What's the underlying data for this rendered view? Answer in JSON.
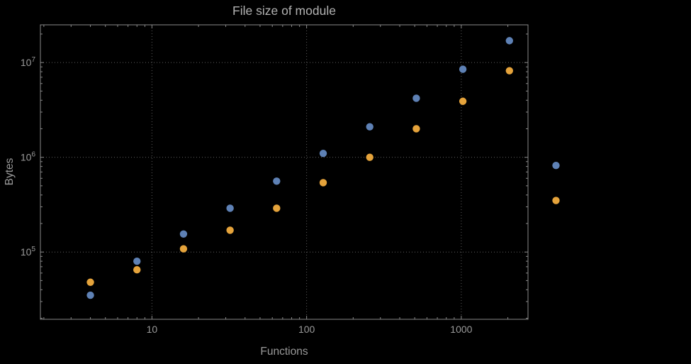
{
  "chart": {
    "title": "File size of module",
    "xlabel": "Functions",
    "ylabel": "Bytes"
  },
  "chart_data": {
    "type": "scatter",
    "title": "File size of module",
    "xlabel": "Functions",
    "ylabel": "Bytes",
    "x_scale": "log",
    "y_scale": "log",
    "grid": true,
    "legend": "none",
    "x": [
      4,
      8,
      16,
      32,
      64,
      128,
      256,
      512,
      1024,
      2048,
      4096
    ],
    "series": [
      {
        "name": "series-1-blue",
        "color": "#5e81b5",
        "values": [
          35000,
          80000,
          155000,
          290000,
          560000,
          1100000,
          2100000,
          4200000,
          8500000,
          17000000,
          820000
        ]
      },
      {
        "name": "series-2-orange",
        "color": "#e5a33b",
        "values": [
          48000,
          65000,
          108000,
          170000,
          290000,
          540000,
          1000000,
          2000000,
          3900000,
          8200000,
          350000
        ]
      }
    ],
    "xticks": {
      "values": [
        10,
        100,
        1000
      ],
      "labels": [
        "10",
        "100",
        "1000"
      ]
    },
    "yticks": {
      "values": [
        100000,
        1000000,
        10000000
      ],
      "labels": [
        {
          "base": "10",
          "exp": "5"
        },
        {
          "base": "10",
          "exp": "6"
        },
        {
          "base": "10",
          "exp": "7"
        }
      ]
    },
    "xlim": [
      1.9,
      2700
    ],
    "ylim": [
      19500,
      25000000
    ],
    "colors": {
      "background": "#000000",
      "frame": "#8a8a8a",
      "grid": "#5e5e5e",
      "text": "#9a9a9a",
      "title": "#b2b2b2"
    }
  }
}
